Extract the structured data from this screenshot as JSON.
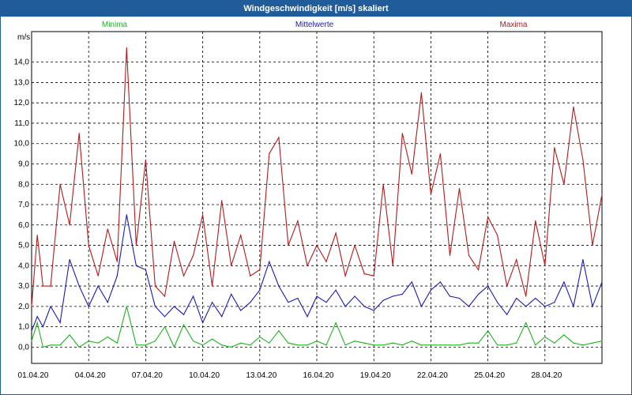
{
  "window": {
    "title": "Windgeschwindigkeit [m/s] skaliert"
  },
  "chart_data": {
    "type": "line",
    "title": "Windgeschwindigkeit [m/s] skaliert",
    "ylabel": "m/s",
    "ylim": [
      -0.8,
      15.5
    ],
    "yticks": [
      "0,0",
      "1,0",
      "2,0",
      "3,0",
      "4,0",
      "5,0",
      "6,0",
      "7,0",
      "8,0",
      "9,0",
      "10,0",
      "11,0",
      "12,0",
      "13,0",
      "14,0"
    ],
    "xlim": [
      0,
      30
    ],
    "xticks": [
      {
        "x": 0,
        "label": "01.04.20"
      },
      {
        "x": 3,
        "label": "04.04.20"
      },
      {
        "x": 6,
        "label": "07.04.20"
      },
      {
        "x": 9,
        "label": "10.04.20"
      },
      {
        "x": 12,
        "label": "13.04.20"
      },
      {
        "x": 15,
        "label": "16.04.20"
      },
      {
        "x": 18,
        "label": "19.04.20"
      },
      {
        "x": 21,
        "label": "22.04.20"
      },
      {
        "x": 24,
        "label": "25.04.20"
      },
      {
        "x": 27,
        "label": "28.04.20"
      }
    ],
    "grid": true,
    "legend_position": "top",
    "series": [
      {
        "name": "Minima",
        "color": "#1eb41e",
        "x": [
          0,
          0.3,
          0.6,
          1,
          1.5,
          2,
          2.5,
          3,
          3.5,
          4,
          4.5,
          5,
          5.5,
          6,
          6.5,
          7,
          7.5,
          8,
          8.5,
          9,
          9.5,
          10,
          10.5,
          11,
          11.5,
          12,
          12.5,
          13,
          13.5,
          14,
          14.5,
          15,
          15.5,
          16,
          16.5,
          17,
          17.5,
          18,
          18.5,
          19,
          19.5,
          20,
          20.5,
          21,
          21.5,
          22,
          22.5,
          23,
          23.5,
          24,
          24.5,
          25,
          25.5,
          26,
          26.5,
          27,
          27.5,
          28,
          28.5,
          29,
          29.5,
          30
        ],
        "values": [
          0.3,
          1.2,
          0,
          0.1,
          0.1,
          0.6,
          0,
          0.3,
          0.2,
          0.5,
          0.2,
          2.0,
          0.1,
          0.1,
          0.3,
          1.0,
          0,
          1.1,
          0.3,
          0.1,
          0.4,
          0.1,
          0,
          0.2,
          0.1,
          0.5,
          0.2,
          0.8,
          0.2,
          0.1,
          0.1,
          0.3,
          0.1,
          1.2,
          0.1,
          0.3,
          0.2,
          0.1,
          0.1,
          0.2,
          0.1,
          0.3,
          0.1,
          0.1,
          0.1,
          0.1,
          0.1,
          0.2,
          0.2,
          0.8,
          0.1,
          0.1,
          0.2,
          1.2,
          0.1,
          0.5,
          0.2,
          0.6,
          0.2,
          0.1,
          0.2,
          0.3
        ]
      },
      {
        "name": "Mittelwerte",
        "color": "#1a1ab4",
        "x": [
          0,
          0.3,
          0.6,
          1,
          1.5,
          2,
          2.5,
          3,
          3.5,
          4,
          4.5,
          5,
          5.5,
          6,
          6.5,
          7,
          7.5,
          8,
          8.5,
          9,
          9.5,
          10,
          10.5,
          11,
          11.5,
          12,
          12.5,
          13,
          13.5,
          14,
          14.5,
          15,
          15.5,
          16,
          16.5,
          17,
          17.5,
          18,
          18.5,
          19,
          19.5,
          20,
          20.5,
          21,
          21.5,
          22,
          22.5,
          23,
          23.5,
          24,
          24.5,
          25,
          25.5,
          26,
          26.5,
          27,
          27.5,
          28,
          28.5,
          29,
          29.5,
          30
        ],
        "values": [
          0.8,
          1.5,
          1.0,
          2.0,
          1.2,
          4.3,
          3.0,
          2.0,
          3.0,
          2.2,
          3.5,
          6.5,
          4.0,
          3.8,
          2.0,
          1.5,
          2.0,
          1.6,
          2.5,
          1.2,
          2.2,
          1.5,
          2.6,
          1.8,
          2.2,
          2.8,
          4.2,
          3.0,
          2.2,
          2.4,
          1.5,
          2.5,
          2.2,
          2.8,
          2.0,
          2.5,
          2.0,
          1.8,
          2.3,
          2.5,
          2.6,
          3.2,
          2.0,
          2.8,
          3.2,
          2.5,
          2.4,
          2.0,
          2.6,
          3.0,
          2.2,
          1.6,
          2.4,
          2.0,
          2.4,
          2.0,
          2.2,
          3.2,
          2.0,
          4.3,
          2.0,
          3.2
        ]
      },
      {
        "name": "Maxima",
        "color": "#b41a1a",
        "x": [
          0,
          0.3,
          0.6,
          1,
          1.5,
          2,
          2.5,
          3,
          3.5,
          4,
          4.5,
          5,
          5.5,
          6,
          6.5,
          7,
          7.5,
          8,
          8.5,
          9,
          9.5,
          10,
          10.5,
          11,
          11.5,
          12,
          12.5,
          13,
          13.5,
          14,
          14.5,
          15,
          15.5,
          16,
          16.5,
          17,
          17.5,
          18,
          18.5,
          19,
          19.5,
          20,
          20.5,
          21,
          21.5,
          22,
          22.5,
          23,
          23.5,
          24,
          24.5,
          25,
          25.5,
          26,
          26.5,
          27,
          27.5,
          28,
          28.5,
          29,
          29.5,
          30
        ],
        "values": [
          2.0,
          5.5,
          3.0,
          3.0,
          8.0,
          6.0,
          10.5,
          5.0,
          3.5,
          5.8,
          4.2,
          14.7,
          5.0,
          9.2,
          3.0,
          2.5,
          5.2,
          3.5,
          4.5,
          6.5,
          3.0,
          7.2,
          4.0,
          5.5,
          3.5,
          3.8,
          9.5,
          10.3,
          5.0,
          6.2,
          4.0,
          5.0,
          4.2,
          5.6,
          3.5,
          5.0,
          3.6,
          3.5,
          8.0,
          4.0,
          10.5,
          8.5,
          12.5,
          7.5,
          9.5,
          4.5,
          7.8,
          4.5,
          3.8,
          6.4,
          5.5,
          3.0,
          4.3,
          2.5,
          6.2,
          4.0,
          9.8,
          8.0,
          11.8,
          9.2,
          5.0,
          7.5
        ]
      }
    ]
  }
}
